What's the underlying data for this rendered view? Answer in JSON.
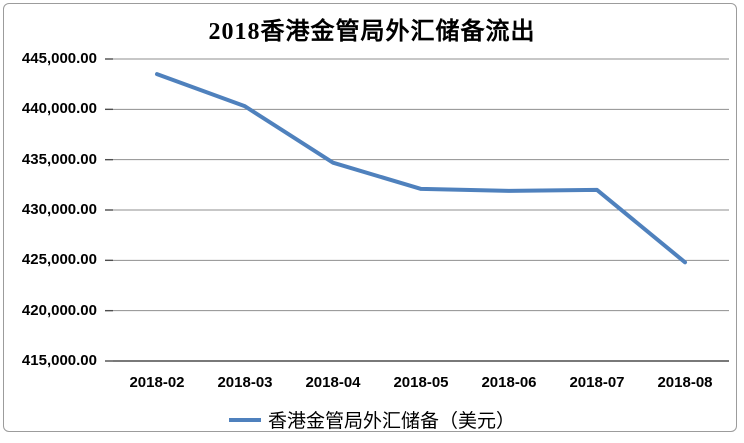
{
  "chart_data": {
    "type": "line",
    "title": "2018香港金管局外汇储备流出",
    "categories": [
      "2018-02",
      "2018-03",
      "2018-04",
      "2018-05",
      "2018-06",
      "2018-07",
      "2018-08"
    ],
    "series": [
      {
        "name": "香港金管局外汇储备（美元）",
        "values": [
          443500,
          440300,
          434700,
          432100,
          431900,
          432000,
          424800
        ],
        "color": "#4F81BD"
      }
    ],
    "xlabel": "",
    "ylabel": "",
    "ylim": [
      415000,
      445000
    ],
    "ytick_step": 5000,
    "yticks": [
      445000,
      440000,
      435000,
      430000,
      425000,
      420000,
      415000
    ],
    "ytick_labels": [
      "445,000.00",
      "440,000.00",
      "435,000.00",
      "430,000.00",
      "425,000.00",
      "420,000.00",
      "415,000.00"
    ],
    "grid": true,
    "legend_position": "bottom",
    "legend_label": "香港金管局外汇储备（美元）"
  },
  "colors": {
    "line": "#4F81BD",
    "gridline": "#8f8f8f",
    "axis": "#4d4d4d",
    "text": "#000000",
    "frame_border": "#9c9c9c",
    "background": "#ffffff"
  }
}
